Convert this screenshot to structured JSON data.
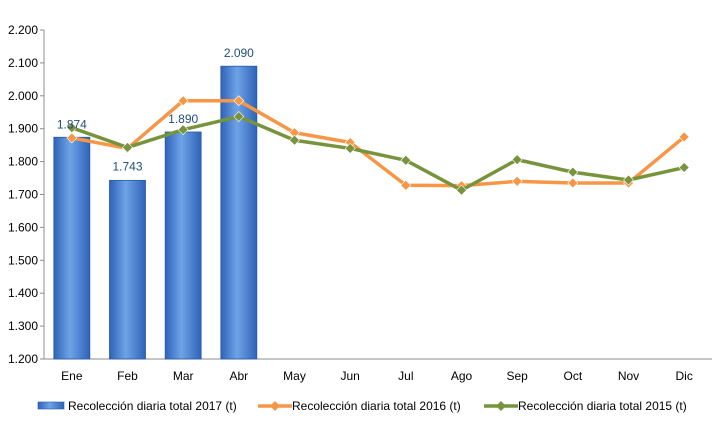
{
  "chart_data": {
    "type": "bar+line",
    "title": "",
    "xlabel": "",
    "ylabel": "",
    "ylim": [
      1200,
      2200
    ],
    "y_ticks": [
      1200,
      1300,
      1400,
      1500,
      1600,
      1700,
      1800,
      1900,
      2000,
      2100,
      2200
    ],
    "y_tick_labels": [
      "1.200",
      "1.300",
      "1.400",
      "1.500",
      "1.600",
      "1.700",
      "1.800",
      "1.900",
      "2.000",
      "2.100",
      "2.200"
    ],
    "categories": [
      "Ene",
      "Feb",
      "Mar",
      "Abr",
      "May",
      "Jun",
      "Jul",
      "Ago",
      "Sep",
      "Oct",
      "Nov",
      "Dic"
    ],
    "grid": false,
    "legend_position": "bottom",
    "series": [
      {
        "name": "Recolección diaria total 2017 (t)",
        "kind": "bar",
        "color": "#4a86d4",
        "values": [
          1874,
          1743,
          1890,
          2090,
          null,
          null,
          null,
          null,
          null,
          null,
          null,
          null
        ],
        "data_labels": [
          "1.874",
          "1.743",
          "1.890",
          "2.090"
        ]
      },
      {
        "name": "Recolección diaria total 2016 (t)",
        "kind": "line",
        "color": "#f79646",
        "marker": "diamond",
        "values": [
          1872,
          1840,
          1985,
          1985,
          1888,
          1858,
          1728,
          1727,
          1740,
          1735,
          1735,
          1875
        ]
      },
      {
        "name": "Recolección diaria total 2015 (t)",
        "kind": "line",
        "color": "#77933c",
        "marker": "diamond",
        "values": [
          1903,
          1843,
          1897,
          1937,
          1865,
          1840,
          1804,
          1713,
          1806,
          1768,
          1744,
          1782
        ]
      }
    ]
  }
}
